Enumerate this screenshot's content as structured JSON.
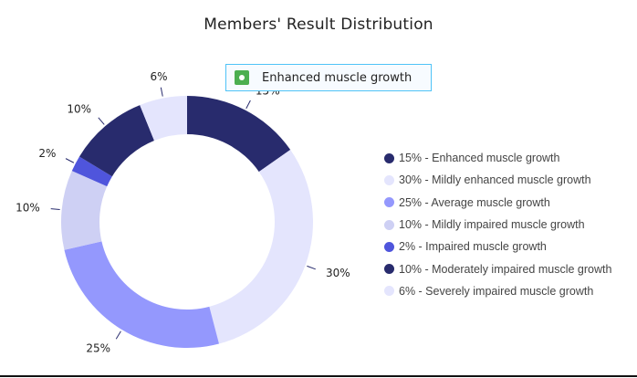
{
  "title": "Members' Result Distribution",
  "tooltip": {
    "label": "Enhanced muscle growth",
    "swatch_color": "#4caf50"
  },
  "chart_data": {
    "type": "pie",
    "variant": "donut",
    "title": "Members' Result Distribution",
    "categories": [
      "Enhanced muscle growth",
      "Mildly enhanced muscle growth",
      "Average muscle growth",
      "Mildly impaired muscle growth",
      "Impaired muscle growth",
      "Moderately impaired muscle growth",
      "Severely impaired muscle growth"
    ],
    "values": [
      15,
      30,
      25,
      10,
      2,
      10,
      6
    ],
    "colors": [
      "#282b6d",
      "#e4e5fd",
      "#9498fd",
      "#ced0f4",
      "#4f55dc",
      "#282b6d",
      "#e4e5fd"
    ],
    "data_labels": [
      "15%",
      "30%",
      "25%",
      "10%",
      "2%",
      "10%",
      "6%"
    ],
    "legend_position": "right",
    "legend_entries": [
      "15% - Enhanced muscle growth",
      "30% - Mildly enhanced muscle growth",
      "25% - Average muscle growth",
      "10% - Mildly impaired muscle growth",
      "2% - Impaired muscle growth",
      "10% - Moderately impaired muscle growth",
      "6% - Severely impaired muscle growth"
    ]
  }
}
